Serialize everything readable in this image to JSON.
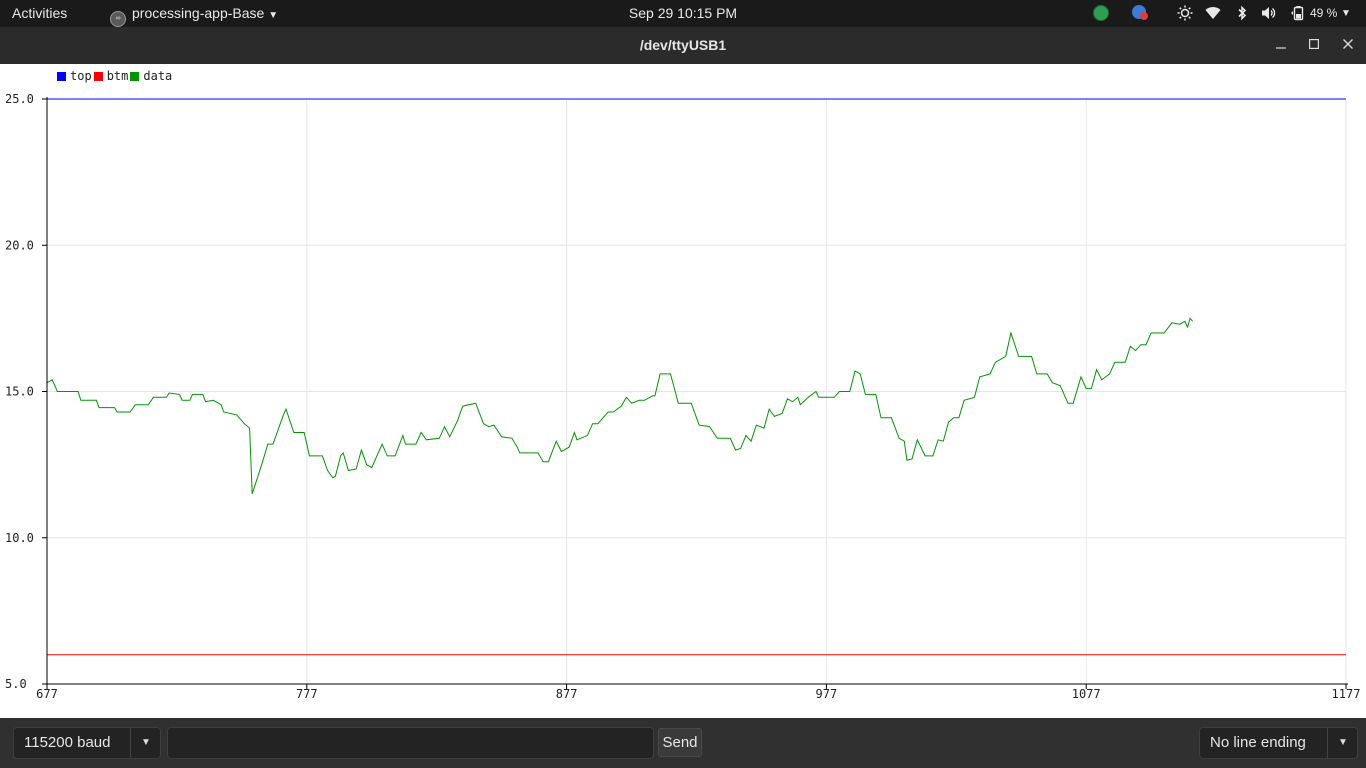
{
  "topbar": {
    "activities": "Activities",
    "app_name": "processing-app-Base",
    "app_icon_label": "∞",
    "datetime": "Sep 29  10:15 PM",
    "battery": "49 %",
    "tray_icons": [
      "green-app-icon",
      "chrome-notification-icon",
      "brightness-icon",
      "wifi-icon",
      "bluetooth-icon",
      "volume-icon",
      "battery-icon"
    ]
  },
  "window": {
    "title": "/dev/ttyUSB1",
    "controls": [
      "minimize",
      "maximize",
      "close"
    ]
  },
  "chart_data": {
    "type": "line",
    "title": "",
    "xlabel": "",
    "ylabel": "",
    "xlim": [
      677,
      1177
    ],
    "ylim": [
      5.0,
      25.0
    ],
    "x_ticks": [
      "677",
      "777",
      "877",
      "977",
      "1077",
      "1177"
    ],
    "y_ticks": [
      "5.0",
      "10.0",
      "15.0",
      "20.0",
      "25.0"
    ],
    "grid": true,
    "legend": {
      "placement": "top-left",
      "entries": [
        {
          "name": "top",
          "color": "#0000ff"
        },
        {
          "name": "btm",
          "color": "#ff0000"
        },
        {
          "name": "data",
          "color": "#009600"
        }
      ]
    },
    "series": [
      {
        "name": "top",
        "color": "#0000ff",
        "points": [
          [
            677,
            25.0
          ],
          [
            1177,
            25.0
          ]
        ]
      },
      {
        "name": "btm",
        "color": "#ff0000",
        "points": [
          [
            677,
            6.0
          ],
          [
            1177,
            6.0
          ]
        ]
      },
      {
        "name": "data",
        "color": "#009600",
        "points": [
          [
            677,
            15.3
          ],
          [
            679,
            15.4
          ],
          [
            681,
            15.0
          ],
          [
            689,
            15.0
          ],
          [
            690,
            14.7
          ],
          [
            696,
            14.7
          ],
          [
            697,
            14.45
          ],
          [
            703,
            14.45
          ],
          [
            704,
            14.3
          ],
          [
            709,
            14.3
          ],
          [
            711,
            14.55
          ],
          [
            716,
            14.55
          ],
          [
            718,
            14.8
          ],
          [
            723,
            14.8
          ],
          [
            724,
            14.95
          ],
          [
            728,
            14.9
          ],
          [
            729,
            14.7
          ],
          [
            732,
            14.7
          ],
          [
            733,
            14.9
          ],
          [
            737,
            14.9
          ],
          [
            738,
            14.65
          ],
          [
            741,
            14.7
          ],
          [
            744,
            14.55
          ],
          [
            745,
            14.3
          ],
          [
            750,
            14.2
          ],
          [
            753,
            13.9
          ],
          [
            755,
            13.75
          ],
          [
            756,
            11.5
          ],
          [
            760,
            12.6
          ],
          [
            762,
            13.2
          ],
          [
            764,
            13.2
          ],
          [
            768,
            14.2
          ],
          [
            769,
            14.4
          ],
          [
            772,
            13.6
          ],
          [
            776,
            13.6
          ],
          [
            778,
            12.8
          ],
          [
            783,
            12.8
          ],
          [
            785,
            12.3
          ],
          [
            787,
            12.05
          ],
          [
            788,
            12.1
          ],
          [
            790,
            12.8
          ],
          [
            791,
            12.9
          ],
          [
            793,
            12.3
          ],
          [
            796,
            12.35
          ],
          [
            798,
            13.0
          ],
          [
            800,
            12.5
          ],
          [
            802,
            12.4
          ],
          [
            804,
            12.8
          ],
          [
            806,
            13.2
          ],
          [
            808,
            12.8
          ],
          [
            811,
            12.8
          ],
          [
            814,
            13.5
          ],
          [
            815,
            13.2
          ],
          [
            819,
            13.2
          ],
          [
            821,
            13.6
          ],
          [
            823,
            13.35
          ],
          [
            828,
            13.4
          ],
          [
            830,
            13.8
          ],
          [
            832,
            13.45
          ],
          [
            835,
            14.0
          ],
          [
            837,
            14.5
          ],
          [
            842,
            14.6
          ],
          [
            845,
            13.9
          ],
          [
            847,
            13.8
          ],
          [
            849,
            13.85
          ],
          [
            852,
            13.45
          ],
          [
            856,
            13.4
          ],
          [
            858,
            13.1
          ],
          [
            859,
            12.9
          ],
          [
            866,
            12.9
          ],
          [
            868,
            12.6
          ],
          [
            870,
            12.6
          ],
          [
            873,
            13.3
          ],
          [
            875,
            12.95
          ],
          [
            878,
            13.1
          ],
          [
            880,
            13.6
          ],
          [
            881,
            13.35
          ],
          [
            885,
            13.5
          ],
          [
            887,
            13.9
          ],
          [
            889,
            13.9
          ],
          [
            891,
            14.1
          ],
          [
            893,
            14.3
          ],
          [
            895,
            14.3
          ],
          [
            898,
            14.5
          ],
          [
            900,
            14.8
          ],
          [
            902,
            14.6
          ],
          [
            905,
            14.7
          ],
          [
            907,
            14.7
          ],
          [
            910,
            14.85
          ],
          [
            911,
            14.85
          ],
          [
            913,
            15.6
          ],
          [
            917,
            15.6
          ],
          [
            920,
            14.6
          ],
          [
            925,
            14.6
          ],
          [
            928,
            13.85
          ],
          [
            932,
            13.8
          ],
          [
            935,
            13.4
          ],
          [
            940,
            13.4
          ],
          [
            942,
            13.0
          ],
          [
            944,
            13.05
          ],
          [
            946,
            13.5
          ],
          [
            948,
            13.3
          ],
          [
            950,
            13.85
          ],
          [
            953,
            13.75
          ],
          [
            955,
            14.4
          ],
          [
            957,
            14.15
          ],
          [
            960,
            14.25
          ],
          [
            962,
            14.75
          ],
          [
            964,
            14.65
          ],
          [
            966,
            14.8
          ],
          [
            967,
            14.55
          ],
          [
            970,
            14.8
          ],
          [
            973,
            15.0
          ],
          [
            974,
            14.8
          ],
          [
            980,
            14.8
          ],
          [
            982,
            15.0
          ],
          [
            986,
            15.0
          ],
          [
            988,
            15.7
          ],
          [
            990,
            15.6
          ],
          [
            992,
            14.9
          ],
          [
            996,
            14.9
          ],
          [
            998,
            14.1
          ],
          [
            1002,
            14.1
          ],
          [
            1005,
            13.4
          ],
          [
            1007,
            13.3
          ],
          [
            1008,
            12.65
          ],
          [
            1010,
            12.7
          ],
          [
            1012,
            13.35
          ],
          [
            1015,
            12.8
          ],
          [
            1018,
            12.8
          ],
          [
            1020,
            13.35
          ],
          [
            1022,
            13.3
          ],
          [
            1024,
            13.95
          ],
          [
            1026,
            14.1
          ],
          [
            1028,
            14.1
          ],
          [
            1030,
            14.7
          ],
          [
            1034,
            14.8
          ],
          [
            1036,
            15.5
          ],
          [
            1040,
            15.6
          ],
          [
            1042,
            16.0
          ],
          [
            1046,
            16.2
          ],
          [
            1048,
            17.0
          ],
          [
            1051,
            16.2
          ],
          [
            1056,
            16.2
          ],
          [
            1058,
            15.6
          ],
          [
            1062,
            15.6
          ],
          [
            1064,
            15.3
          ],
          [
            1067,
            15.2
          ],
          [
            1070,
            14.6
          ],
          [
            1072,
            14.6
          ],
          [
            1075,
            15.5
          ],
          [
            1077,
            15.1
          ],
          [
            1079,
            15.1
          ],
          [
            1081,
            15.75
          ],
          [
            1083,
            15.4
          ],
          [
            1086,
            15.6
          ],
          [
            1088,
            16.0
          ],
          [
            1092,
            16.0
          ],
          [
            1094,
            16.55
          ],
          [
            1096,
            16.4
          ],
          [
            1098,
            16.6
          ],
          [
            1100,
            16.6
          ],
          [
            1102,
            17.0
          ],
          [
            1107,
            17.0
          ],
          [
            1110,
            17.35
          ],
          [
            1113,
            17.3
          ],
          [
            1115,
            17.4
          ],
          [
            1116,
            17.2
          ],
          [
            1117,
            17.5
          ],
          [
            1118,
            17.4
          ]
        ]
      }
    ]
  },
  "bottombar": {
    "baud": "115200 baud",
    "message_value": "",
    "send_label": "Send",
    "line_ending": "No line ending"
  }
}
